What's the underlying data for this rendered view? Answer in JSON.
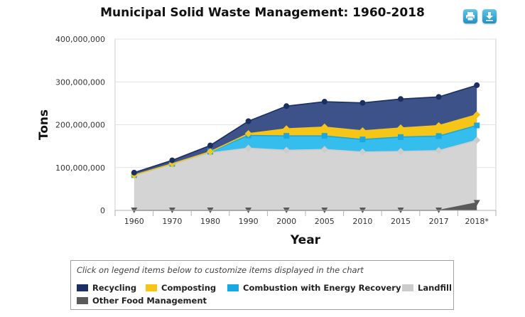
{
  "toolbar": {
    "print_icon": "print-icon",
    "download_icon": "download-icon"
  },
  "legend": {
    "hint": "Click on legend items below to customize items displayed in the chart",
    "items": [
      {
        "label": "Recycling",
        "color": "#1c2f63"
      },
      {
        "label": "Composting",
        "color": "#f5c518"
      },
      {
        "label": "Combustion with Energy Recovery",
        "color": "#1aa8e0"
      },
      {
        "label": "Landfill",
        "color": "#cccccc"
      },
      {
        "label": "Other Food Management",
        "color": "#5a5a5a"
      }
    ]
  },
  "chart_data": {
    "type": "area",
    "stacked": true,
    "title": "Municipal Solid Waste Management: 1960-2018",
    "xlabel": "Year",
    "ylabel": "Tons",
    "categories": [
      "1960",
      "1970",
      "1980",
      "1990",
      "2000",
      "2005",
      "2010",
      "2015",
      "2017",
      "2018*"
    ],
    "ylim": [
      0,
      400000000
    ],
    "yticks": [
      0,
      100000000,
      200000000,
      300000000,
      400000000
    ],
    "ytick_labels": [
      "0",
      "100,000,000",
      "200,000,000",
      "300,000,000",
      "400,000,000"
    ],
    "series_order_bottom_to_top": [
      "Other Food Management",
      "Landfill",
      "Combustion with Energy Recovery",
      "Composting",
      "Recycling"
    ],
    "series": [
      {
        "name": "Other Food Management",
        "color": "#5a5a5a",
        "fill": "#5a5a5a",
        "marker": "triangle-down",
        "values": [
          0,
          0,
          0,
          0,
          0,
          0,
          0,
          0,
          0,
          17700000
        ]
      },
      {
        "name": "Landfill",
        "color": "#cccccc",
        "fill": "#d4d4d4",
        "marker": "diamond",
        "values": [
          82500000,
          108500000,
          134400000,
          145300000,
          140300000,
          142300000,
          136300000,
          137700000,
          139600000,
          146100000
        ]
      },
      {
        "name": "Combustion with Energy Recovery",
        "color": "#1aa8e0",
        "fill": "#35bdee",
        "marker": "square",
        "values": [
          0,
          400000,
          2800000,
          29800000,
          33700000,
          31700000,
          29300000,
          33500000,
          34000000,
          34600000
        ]
      },
      {
        "name": "Composting",
        "color": "#f5c518",
        "fill": "#f5c518",
        "marker": "diamond",
        "values": [
          0,
          0,
          0,
          4200000,
          16500000,
          20600000,
          20200000,
          21300000,
          24400000,
          25000000
        ]
      },
      {
        "name": "Recycling",
        "color": "#1c2f63",
        "fill": "#3c5289",
        "marker": "circle",
        "values": [
          5600000,
          8000000,
          14500000,
          29000000,
          53000000,
          59300000,
          65300000,
          67600000,
          67000000,
          69000000
        ]
      }
    ]
  }
}
